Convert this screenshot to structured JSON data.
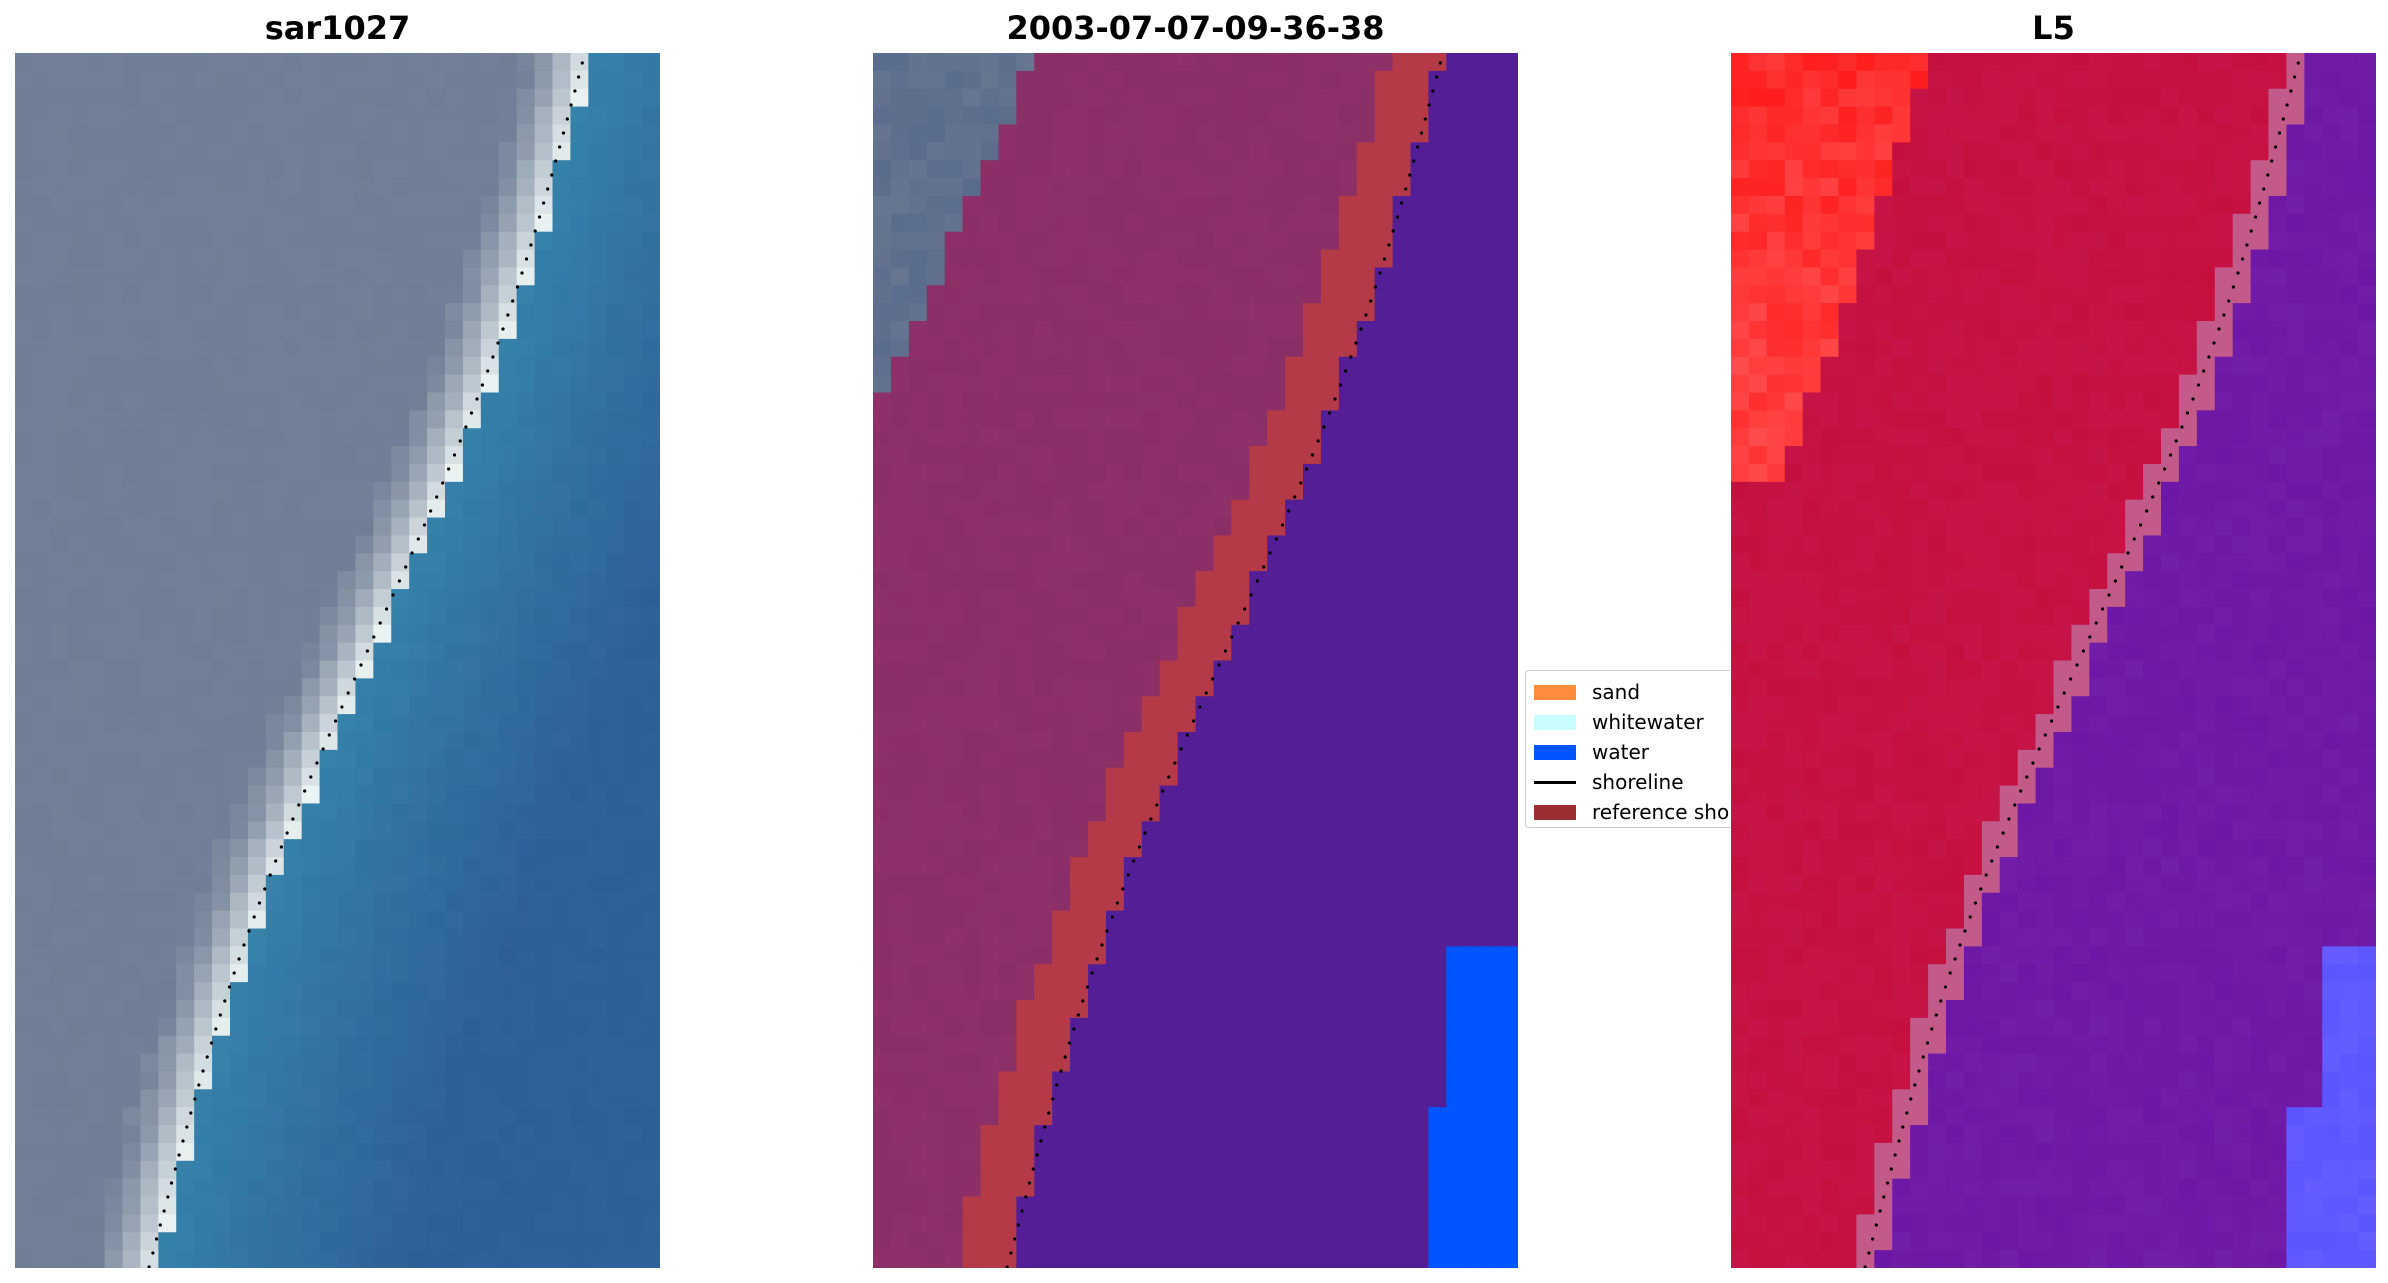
{
  "panels": [
    {
      "title": "sar1027",
      "kind": "rgb"
    },
    {
      "title": "2003-07-07-09-36-38",
      "kind": "classified"
    },
    {
      "title": "L5",
      "kind": "index"
    }
  ],
  "legend": {
    "items": [
      {
        "label": "sand",
        "color": "#ff8c3a",
        "type": "patch"
      },
      {
        "label": "whitewater",
        "color": "#c8fcff",
        "type": "patch"
      },
      {
        "label": "water",
        "color": "#0055ff",
        "type": "patch"
      },
      {
        "label": "shoreline",
        "color": "#000000",
        "type": "line"
      },
      {
        "label": "reference shoreline buffer",
        "color": "#9b2d33",
        "type": "patch"
      }
    ]
  },
  "colors": {
    "land_rgb": "#6f7d95",
    "water_rgb": "#2f74a8",
    "beach_white": "#eef6f4",
    "classified_land": "#8a2e66",
    "classified_buffer": "#b53a47",
    "classified_water": "#541f96",
    "index_red": "#c4103e",
    "index_purple": "#6d17a6",
    "index_bright_red": "#ff1a1a",
    "index_blue": "#5a55ff"
  }
}
